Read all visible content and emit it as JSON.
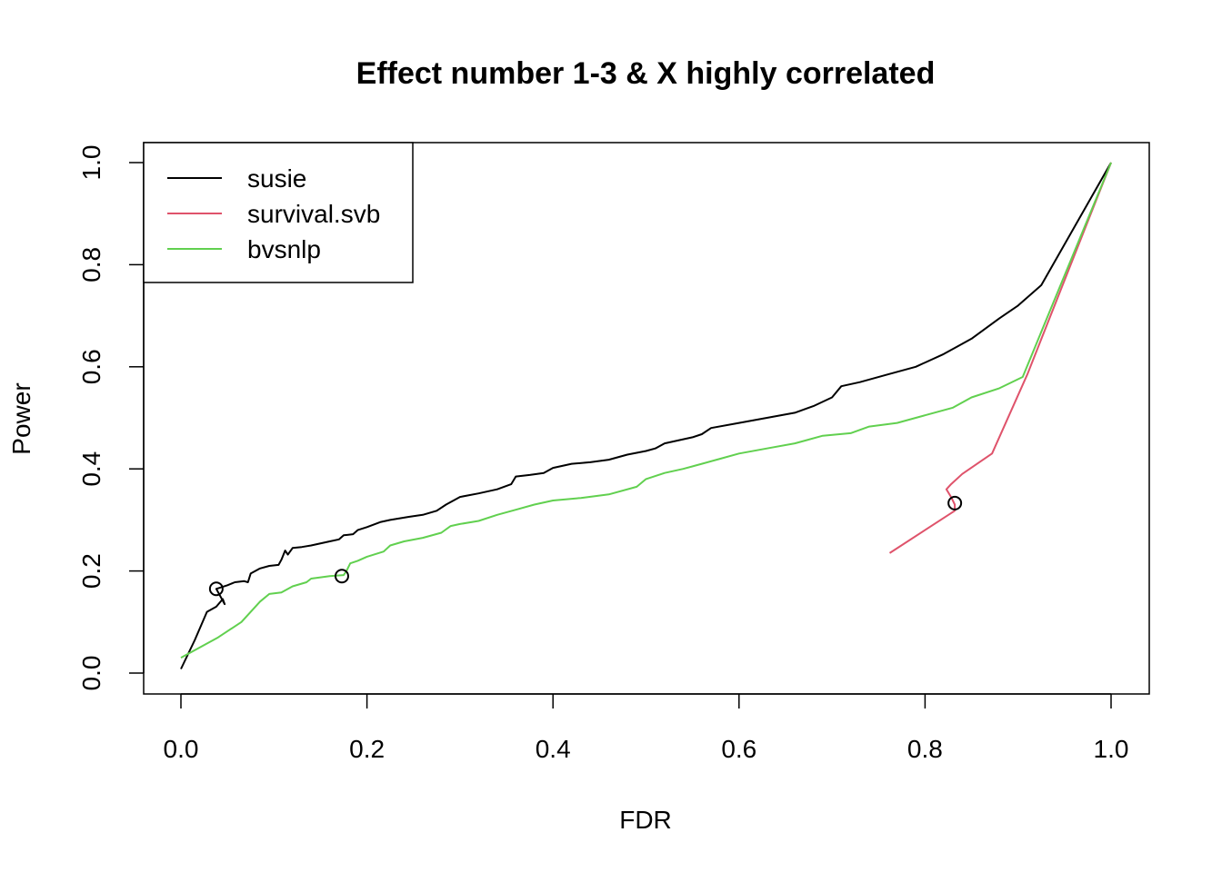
{
  "chart_data": {
    "type": "line",
    "title": "Effect number 1-3 & X highly correlated",
    "xlabel": "FDR",
    "ylabel": "Power",
    "xlim": [
      -0.02,
      1.02
    ],
    "ylim": [
      -0.04,
      1.04
    ],
    "xticks": [
      "0.0",
      "0.2",
      "0.4",
      "0.6",
      "0.8",
      "1.0"
    ],
    "yticks": [
      "0.0",
      "0.2",
      "0.4",
      "0.6",
      "0.8",
      "1.0"
    ],
    "grid": false,
    "legend_position": "top-left",
    "series": [
      {
        "name": "susie",
        "color": "#000000",
        "points": [
          [
            0.0,
            0.008
          ],
          [
            0.015,
            0.065
          ],
          [
            0.028,
            0.12
          ],
          [
            0.038,
            0.13
          ],
          [
            0.045,
            0.145
          ],
          [
            0.047,
            0.135
          ],
          [
            0.038,
            0.165
          ],
          [
            0.05,
            0.172
          ],
          [
            0.058,
            0.178
          ],
          [
            0.068,
            0.18
          ],
          [
            0.072,
            0.178
          ],
          [
            0.075,
            0.195
          ],
          [
            0.085,
            0.205
          ],
          [
            0.095,
            0.21
          ],
          [
            0.105,
            0.212
          ],
          [
            0.108,
            0.222
          ],
          [
            0.112,
            0.24
          ],
          [
            0.115,
            0.232
          ],
          [
            0.12,
            0.245
          ],
          [
            0.13,
            0.247
          ],
          [
            0.14,
            0.25
          ],
          [
            0.16,
            0.258
          ],
          [
            0.17,
            0.262
          ],
          [
            0.175,
            0.27
          ],
          [
            0.185,
            0.272
          ],
          [
            0.19,
            0.28
          ],
          [
            0.2,
            0.286
          ],
          [
            0.215,
            0.296
          ],
          [
            0.225,
            0.3
          ],
          [
            0.245,
            0.306
          ],
          [
            0.26,
            0.31
          ],
          [
            0.275,
            0.318
          ],
          [
            0.285,
            0.33
          ],
          [
            0.3,
            0.345
          ],
          [
            0.32,
            0.352
          ],
          [
            0.34,
            0.36
          ],
          [
            0.355,
            0.37
          ],
          [
            0.36,
            0.385
          ],
          [
            0.375,
            0.388
          ],
          [
            0.39,
            0.392
          ],
          [
            0.4,
            0.402
          ],
          [
            0.42,
            0.41
          ],
          [
            0.44,
            0.413
          ],
          [
            0.46,
            0.418
          ],
          [
            0.48,
            0.428
          ],
          [
            0.5,
            0.435
          ],
          [
            0.51,
            0.44
          ],
          [
            0.52,
            0.45
          ],
          [
            0.55,
            0.462
          ],
          [
            0.56,
            0.468
          ],
          [
            0.57,
            0.48
          ],
          [
            0.6,
            0.49
          ],
          [
            0.63,
            0.5
          ],
          [
            0.66,
            0.51
          ],
          [
            0.68,
            0.523
          ],
          [
            0.7,
            0.54
          ],
          [
            0.71,
            0.562
          ],
          [
            0.73,
            0.57
          ],
          [
            0.76,
            0.585
          ],
          [
            0.79,
            0.6
          ],
          [
            0.82,
            0.625
          ],
          [
            0.85,
            0.655
          ],
          [
            0.88,
            0.695
          ],
          [
            0.9,
            0.72
          ],
          [
            0.925,
            0.76
          ],
          [
            1.0,
            1.0
          ]
        ]
      },
      {
        "name": "survival.svb",
        "color": "#DF536B",
        "points": [
          [
            0.762,
            0.235
          ],
          [
            0.832,
            0.318
          ],
          [
            0.832,
            0.33
          ],
          [
            0.828,
            0.345
          ],
          [
            0.823,
            0.36
          ],
          [
            0.828,
            0.37
          ],
          [
            0.84,
            0.39
          ],
          [
            0.872,
            0.43
          ],
          [
            0.91,
            0.585
          ],
          [
            1.0,
            1.0
          ]
        ]
      },
      {
        "name": "bvsnlp",
        "color": "#61D04F",
        "points": [
          [
            0.0,
            0.03
          ],
          [
            0.04,
            0.07
          ],
          [
            0.065,
            0.1
          ],
          [
            0.085,
            0.14
          ],
          [
            0.095,
            0.155
          ],
          [
            0.108,
            0.158
          ],
          [
            0.12,
            0.17
          ],
          [
            0.135,
            0.178
          ],
          [
            0.14,
            0.185
          ],
          [
            0.16,
            0.19
          ],
          [
            0.175,
            0.192
          ],
          [
            0.178,
            0.2
          ],
          [
            0.182,
            0.215
          ],
          [
            0.19,
            0.22
          ],
          [
            0.2,
            0.228
          ],
          [
            0.218,
            0.238
          ],
          [
            0.225,
            0.25
          ],
          [
            0.24,
            0.258
          ],
          [
            0.26,
            0.265
          ],
          [
            0.28,
            0.275
          ],
          [
            0.29,
            0.288
          ],
          [
            0.3,
            0.292
          ],
          [
            0.32,
            0.298
          ],
          [
            0.34,
            0.31
          ],
          [
            0.36,
            0.32
          ],
          [
            0.38,
            0.33
          ],
          [
            0.4,
            0.338
          ],
          [
            0.43,
            0.343
          ],
          [
            0.46,
            0.35
          ],
          [
            0.49,
            0.365
          ],
          [
            0.5,
            0.38
          ],
          [
            0.52,
            0.392
          ],
          [
            0.54,
            0.4
          ],
          [
            0.56,
            0.41
          ],
          [
            0.58,
            0.42
          ],
          [
            0.6,
            0.43
          ],
          [
            0.63,
            0.44
          ],
          [
            0.66,
            0.45
          ],
          [
            0.69,
            0.465
          ],
          [
            0.72,
            0.47
          ],
          [
            0.74,
            0.483
          ],
          [
            0.77,
            0.49
          ],
          [
            0.8,
            0.505
          ],
          [
            0.83,
            0.52
          ],
          [
            0.85,
            0.54
          ],
          [
            0.88,
            0.558
          ],
          [
            0.905,
            0.58
          ],
          [
            1.0,
            1.0
          ]
        ]
      }
    ],
    "markers": [
      {
        "x": 0.038,
        "y": 0.165,
        "shape": "open-circle"
      },
      {
        "x": 0.173,
        "y": 0.19,
        "shape": "open-circle"
      },
      {
        "x": 0.832,
        "y": 0.333,
        "shape": "open-circle"
      }
    ]
  }
}
